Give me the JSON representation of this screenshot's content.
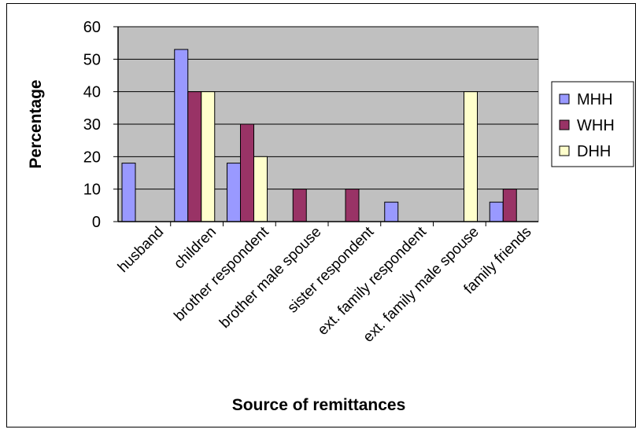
{
  "chart_data": {
    "type": "bar",
    "title": "",
    "xlabel": "Source of remittances",
    "ylabel": "Percentage",
    "ylim": [
      0,
      60
    ],
    "yticks": [
      0,
      10,
      20,
      30,
      40,
      50,
      60
    ],
    "grid": true,
    "legend_position": "right",
    "categories": [
      "husband",
      "children",
      "brother respondent",
      "brother male spouse",
      "sister respondent",
      "ext. family respondent",
      "ext. family male spouse",
      "family friends"
    ],
    "series": [
      {
        "name": "MHH",
        "color": "#9999ff",
        "values": [
          18,
          53,
          18,
          0,
          0,
          6,
          0,
          6
        ]
      },
      {
        "name": "WHH",
        "color": "#993366",
        "values": [
          0,
          40,
          30,
          10,
          10,
          0,
          0,
          10
        ]
      },
      {
        "name": "DHH",
        "color": "#ffffcc",
        "values": [
          0,
          40,
          20,
          0,
          0,
          0,
          40,
          0
        ]
      }
    ],
    "plot_background": "#c0c0c0"
  }
}
